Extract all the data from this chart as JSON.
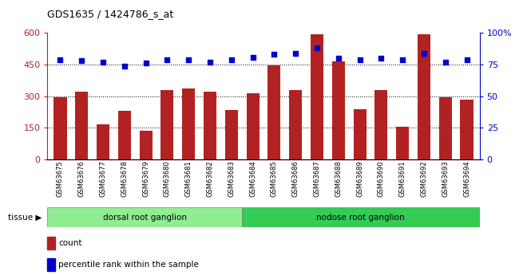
{
  "title": "GDS1635 / 1424786_s_at",
  "categories": [
    "GSM63675",
    "GSM63676",
    "GSM63677",
    "GSM63678",
    "GSM63679",
    "GSM63680",
    "GSM63681",
    "GSM63682",
    "GSM63683",
    "GSM63684",
    "GSM63685",
    "GSM63686",
    "GSM63687",
    "GSM63688",
    "GSM63689",
    "GSM63690",
    "GSM63691",
    "GSM63692",
    "GSM63693",
    "GSM63694"
  ],
  "counts": [
    295,
    320,
    165,
    230,
    135,
    330,
    335,
    320,
    235,
    315,
    445,
    330,
    595,
    465,
    240,
    330,
    155,
    595,
    295,
    285
  ],
  "percentiles": [
    79,
    78,
    77,
    74,
    76,
    79,
    79,
    77,
    79,
    81,
    83,
    84,
    88,
    80,
    79,
    80,
    79,
    84,
    77,
    79
  ],
  "group1_label": "dorsal root ganglion",
  "group2_label": "nodose root ganglion",
  "group1_count": 9,
  "group2_count": 11,
  "bar_color": "#B22222",
  "dot_color": "#0000CC",
  "group1_bg": "#90EE90",
  "group2_bg": "#33CC55",
  "ylim_left": [
    0,
    600
  ],
  "ylim_right": [
    0,
    100
  ],
  "yticks_left": [
    0,
    150,
    300,
    450,
    600
  ],
  "yticks_right": [
    0,
    25,
    50,
    75,
    100
  ],
  "grid_vals": [
    150,
    300,
    450
  ],
  "tissue_label": "tissue"
}
